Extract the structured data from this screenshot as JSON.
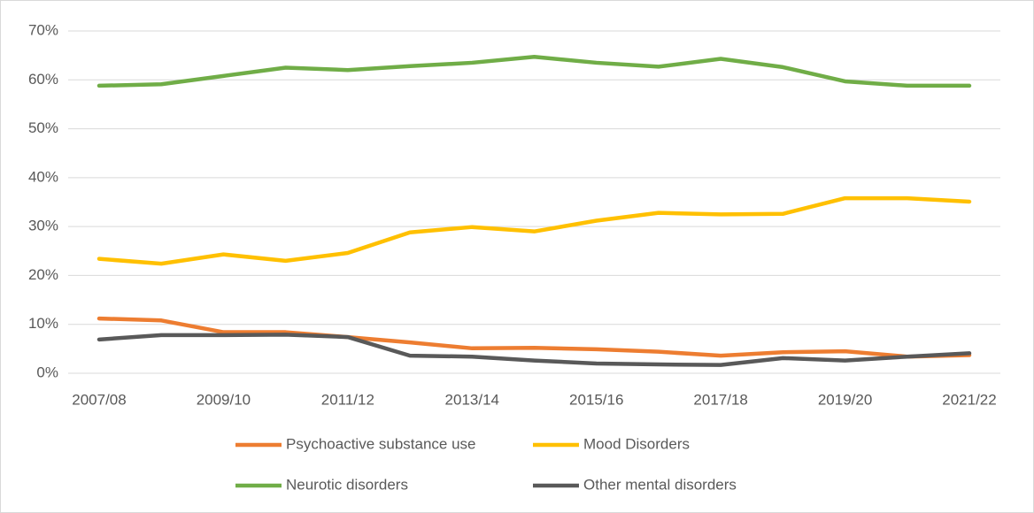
{
  "chart_data": {
    "type": "line",
    "categories": [
      "2007/08",
      null,
      "2009/10",
      null,
      "2011/12",
      null,
      "2013/14",
      null,
      "2015/16",
      null,
      "2017/18",
      null,
      "2019/20",
      null,
      "2021/22"
    ],
    "series": [
      {
        "name": "Psychoactive substance use",
        "color": "#ED7D31",
        "values": [
          11.2,
          10.8,
          8.4,
          8.4,
          7.4,
          6.3,
          5.1,
          5.2,
          4.9,
          4.4,
          3.6,
          4.3,
          4.5,
          3.4,
          3.7
        ]
      },
      {
        "name": "Mood Disorders",
        "color": "#FFC000",
        "values": [
          23.4,
          22.4,
          24.3,
          23.0,
          24.6,
          28.8,
          29.9,
          29.0,
          31.2,
          32.8,
          32.5,
          32.6,
          35.8,
          35.8,
          35.1
        ]
      },
      {
        "name": "Neurotic disorders",
        "color": "#70AD47",
        "values": [
          58.8,
          59.1,
          60.8,
          62.5,
          62.0,
          62.8,
          63.5,
          64.7,
          63.5,
          62.7,
          64.3,
          62.6,
          59.7,
          58.8,
          58.8
        ]
      },
      {
        "name": "Other mental disorders",
        "color": "#595959",
        "values": [
          6.9,
          7.8,
          7.8,
          7.9,
          7.4,
          3.6,
          3.4,
          2.6,
          2.0,
          1.8,
          1.7,
          3.1,
          2.6,
          3.4,
          4.1
        ]
      }
    ],
    "ylim": [
      0,
      70
    ],
    "yticks": [
      {
        "value": 0,
        "label": "0%"
      },
      {
        "value": 10,
        "label": "10%"
      },
      {
        "value": 20,
        "label": "20%"
      },
      {
        "value": 30,
        "label": "30%"
      },
      {
        "value": 40,
        "label": "40%"
      },
      {
        "value": 50,
        "label": "50%"
      },
      {
        "value": 60,
        "label": "60%"
      },
      {
        "value": 70,
        "label": "70%"
      }
    ],
    "grid": true,
    "legend": "bottom"
  }
}
